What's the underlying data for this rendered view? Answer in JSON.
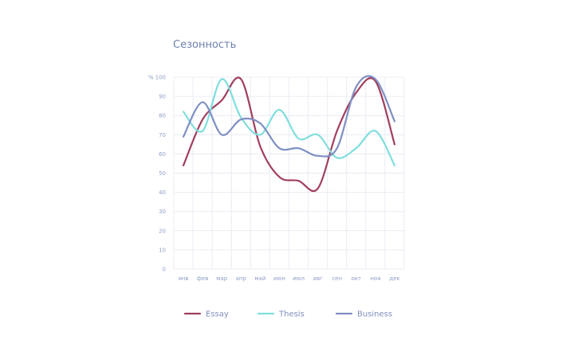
{
  "chart_data": {
    "type": "line",
    "title": "Сезонность",
    "ylabel": "%",
    "ylim": [
      0,
      100
    ],
    "yticks": [
      "0",
      "10",
      "20",
      "30",
      "40",
      "50",
      "60",
      "70",
      "80",
      "90",
      "100"
    ],
    "categories": [
      "янв",
      "фев",
      "мар",
      "апр",
      "май",
      "июн",
      "июл",
      "авг",
      "сен",
      "окт",
      "ноя",
      "дек"
    ],
    "grid": true,
    "legend_position": "bottom",
    "series": [
      {
        "name": "Essay",
        "color": "#a03e5e",
        "values": [
          54,
          78,
          88,
          99,
          64,
          48,
          46,
          42,
          72,
          92,
          98,
          65
        ]
      },
      {
        "name": "Thesis",
        "color": "#7fdede",
        "values": [
          82,
          72,
          99,
          79,
          70,
          83,
          68,
          70,
          58,
          63,
          72,
          54
        ]
      },
      {
        "name": "Business",
        "color": "#7f8fc4",
        "values": [
          69,
          87,
          70,
          78,
          76,
          63,
          63,
          59,
          63,
          95,
          99,
          77
        ]
      }
    ]
  }
}
